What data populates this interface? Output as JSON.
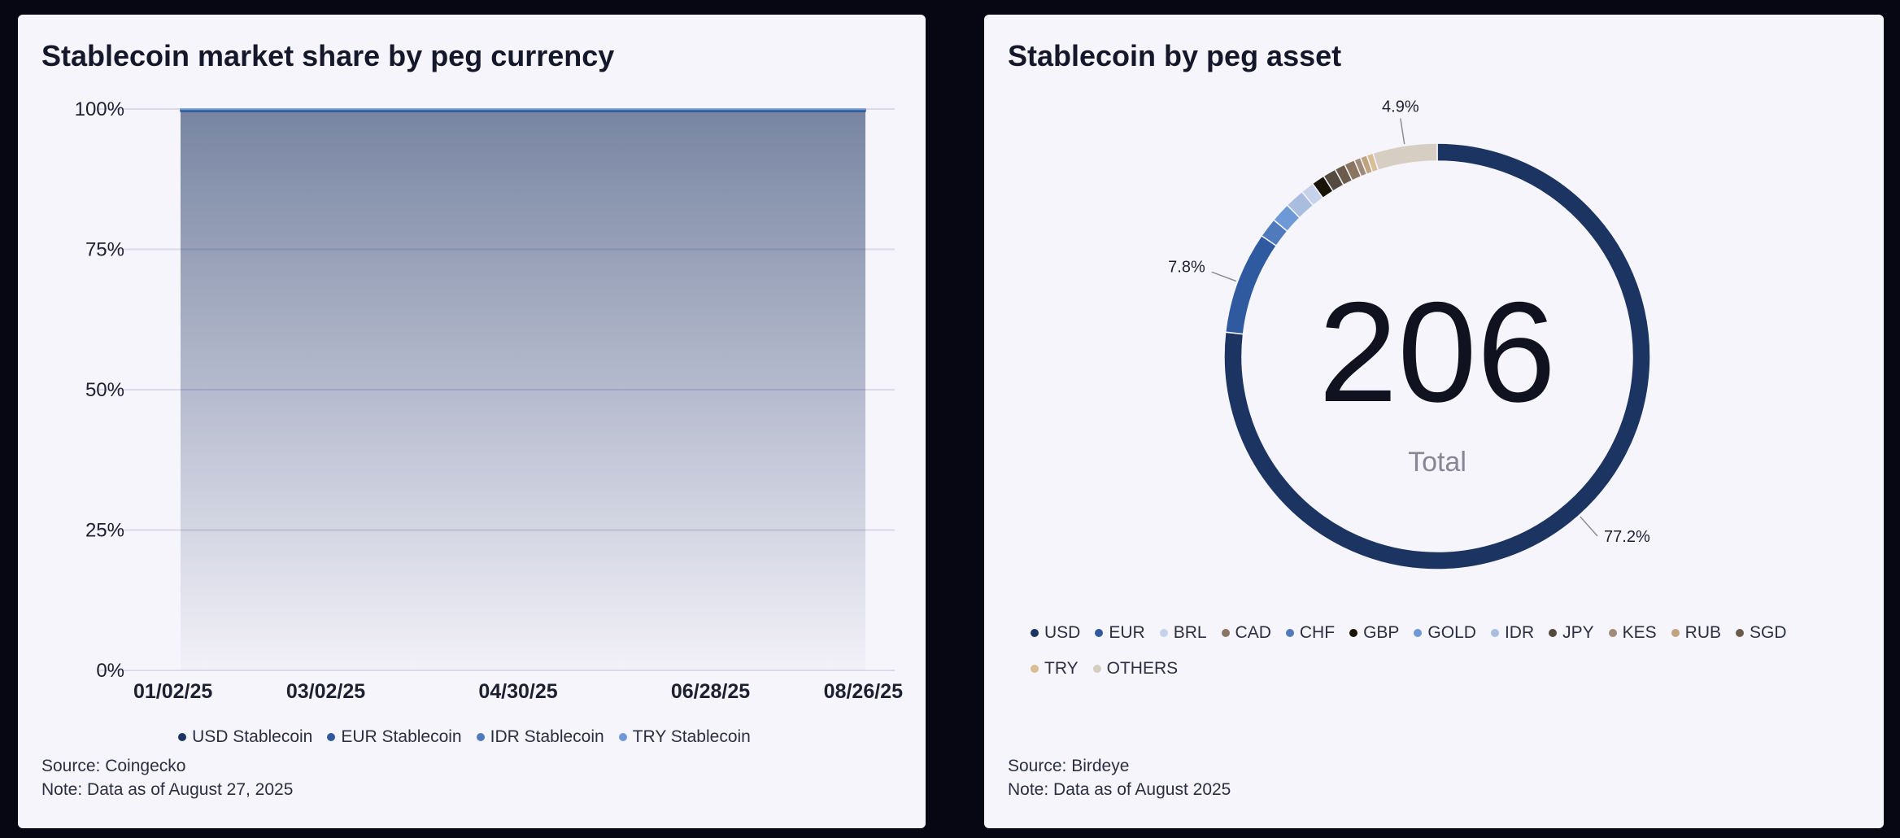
{
  "left_panel": {
    "title": "Stablecoin market share by peg currency",
    "source": "Source: Coingecko",
    "note": "Note: Data as of August 27, 2025",
    "legend": [
      {
        "label": "USD Stablecoin",
        "color": "#1c3461"
      },
      {
        "label": "EUR Stablecoin",
        "color": "#2f5aa0"
      },
      {
        "label": "IDR Stablecoin",
        "color": "#4f7bbd"
      },
      {
        "label": "TRY Stablecoin",
        "color": "#6d9ad6"
      }
    ]
  },
  "right_panel": {
    "title": "Stablecoin by peg asset",
    "center_value": "206",
    "center_label": "Total",
    "source": "Source: Birdeye",
    "note": "Note: Data as of August 2025",
    "legend": [
      {
        "label": "USD",
        "color": "#1c3461"
      },
      {
        "label": "EUR",
        "color": "#2f5aa0"
      },
      {
        "label": "BRL",
        "color": "#c5d3ea"
      },
      {
        "label": "CAD",
        "color": "#8a7560"
      },
      {
        "label": "CHF",
        "color": "#4f7bbd"
      },
      {
        "label": "GBP",
        "color": "#1a1408"
      },
      {
        "label": "GOLD",
        "color": "#6d9ad6"
      },
      {
        "label": "IDR",
        "color": "#a9bedf"
      },
      {
        "label": "JPY",
        "color": "#544a40"
      },
      {
        "label": "KES",
        "color": "#a08a78"
      },
      {
        "label": "RUB",
        "color": "#c0a37f"
      },
      {
        "label": "SGD",
        "color": "#6b5b4c"
      },
      {
        "label": "TRY",
        "color": "#d8bf95"
      },
      {
        "label": "OTHERS",
        "color": "#d6cec3"
      }
    ]
  },
  "chart_data": [
    {
      "type": "area",
      "title": "Stablecoin market share by peg currency",
      "stacked": true,
      "x": [
        "01/02/25",
        "03/02/25",
        "04/30/25",
        "06/28/25",
        "08/26/25"
      ],
      "yticks": [
        "0%",
        "25%",
        "50%",
        "75%",
        "100%"
      ],
      "ylim": [
        0,
        100
      ],
      "series": [
        {
          "name": "USD Stablecoin",
          "values": [
            99.6,
            99.6,
            99.6,
            99.6,
            99.6
          ]
        },
        {
          "name": "EUR Stablecoin",
          "values": [
            0.3,
            0.3,
            0.3,
            0.3,
            0.3
          ]
        },
        {
          "name": "IDR Stablecoin",
          "values": [
            0.05,
            0.05,
            0.05,
            0.05,
            0.05
          ]
        },
        {
          "name": "TRY Stablecoin",
          "values": [
            0.05,
            0.05,
            0.05,
            0.05,
            0.05
          ]
        }
      ],
      "grid": true,
      "legend_position": "bottom"
    },
    {
      "type": "pie",
      "title": "Stablecoin by peg asset",
      "total": 206,
      "categories": [
        "USD",
        "EUR",
        "CHF",
        "GOLD",
        "IDR",
        "BRL",
        "GBP",
        "JPY",
        "SGD",
        "CAD",
        "KES",
        "RUB",
        "TRY",
        "OTHERS"
      ],
      "values": [
        77.2,
        7.8,
        1.5,
        1.5,
        1.5,
        1.0,
        1.0,
        1.0,
        0.8,
        0.8,
        0.5,
        0.5,
        0.5,
        4.9
      ],
      "data_labels": [
        {
          "category": "USD",
          "text": "77.2%"
        },
        {
          "category": "EUR",
          "text": "7.8%"
        },
        {
          "category": "OTHERS",
          "text": "4.9%"
        }
      ],
      "legend_position": "bottom"
    }
  ]
}
